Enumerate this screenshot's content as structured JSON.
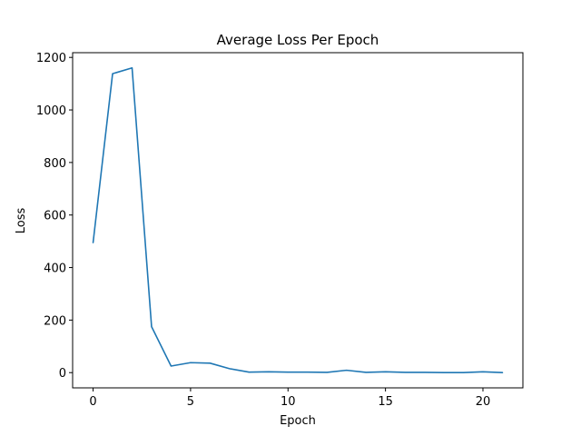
{
  "chart_data": {
    "type": "line",
    "title": "Average Loss Per Epoch",
    "xlabel": "Epoch",
    "ylabel": "Loss",
    "xlim": [
      -1.05,
      22.05
    ],
    "ylim": [
      -58,
      1218
    ],
    "x_ticks": [
      0,
      5,
      10,
      15,
      20
    ],
    "y_ticks": [
      0,
      200,
      400,
      600,
      800,
      1000,
      1200
    ],
    "grid": false,
    "series": [
      {
        "color": "#1f77b4",
        "x": [
          0,
          1,
          2,
          3,
          4,
          5,
          6,
          7,
          8,
          9,
          10,
          11,
          12,
          13,
          14,
          15,
          16,
          17,
          18,
          19,
          20,
          21
        ],
        "y": [
          495,
          1138,
          1160,
          175,
          25,
          38,
          36,
          15,
          2,
          3,
          2,
          2,
          1,
          9,
          1,
          3,
          1,
          1,
          0,
          0,
          3,
          0
        ]
      }
    ]
  }
}
